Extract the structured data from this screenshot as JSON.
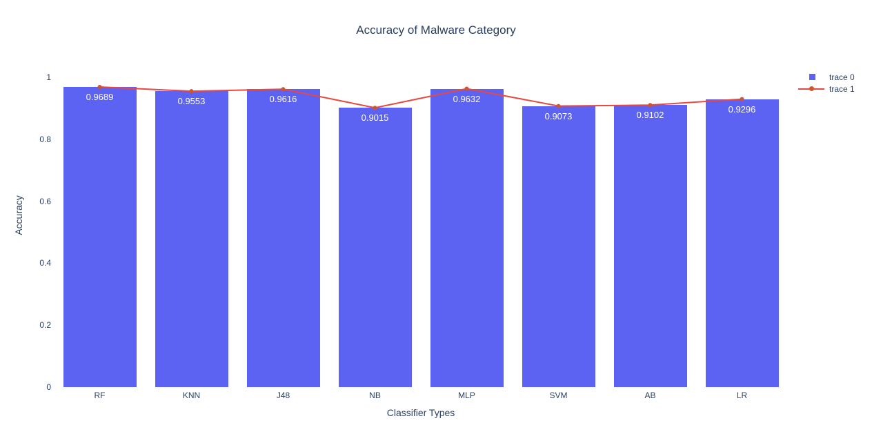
{
  "title": "Accuracy of Malware Category",
  "colors": {
    "bar": "#5c63f2",
    "line": "#e8483f",
    "marker": "#cf5530",
    "title_text": "#2a3f5f",
    "tick_text": "#2a3f5f",
    "bar_label_text": "#ffffff",
    "background": "#ffffff"
  },
  "legend": {
    "position": "top-right",
    "items": [
      {
        "label": "trace 0",
        "symbol": "square"
      },
      {
        "label": "trace 1",
        "symbol": "line-marker"
      }
    ]
  },
  "chart_data": {
    "type": "bar",
    "overlay": "line",
    "title": "Accuracy of Malware Category",
    "xlabel": "Classifier Types",
    "ylabel": "Accuracy",
    "categories": [
      "RF",
      "KNN",
      "J48",
      "NB",
      "MLP",
      "SVM",
      "AB",
      "LR"
    ],
    "series": [
      {
        "name": "trace 0",
        "type": "bar",
        "values": [
          0.9689,
          0.9553,
          0.9616,
          0.9015,
          0.9632,
          0.9073,
          0.9102,
          0.9296
        ]
      },
      {
        "name": "trace 1",
        "type": "line",
        "values": [
          0.9689,
          0.9553,
          0.9616,
          0.9015,
          0.9632,
          0.9073,
          0.9102,
          0.9296
        ]
      }
    ],
    "bar_labels": [
      "0.9689",
      "0.9553",
      "0.9616",
      "0.9015",
      "0.9632",
      "0.9073",
      "0.9102",
      "0.9296"
    ],
    "ylim": [
      0,
      1
    ],
    "yticks": [
      0,
      0.2,
      0.4,
      0.6,
      0.8,
      1
    ],
    "ytick_labels": [
      "0",
      "0.2",
      "0.4",
      "0.6",
      "0.8",
      "1"
    ],
    "grid": false,
    "legend_position": "right-top"
  }
}
